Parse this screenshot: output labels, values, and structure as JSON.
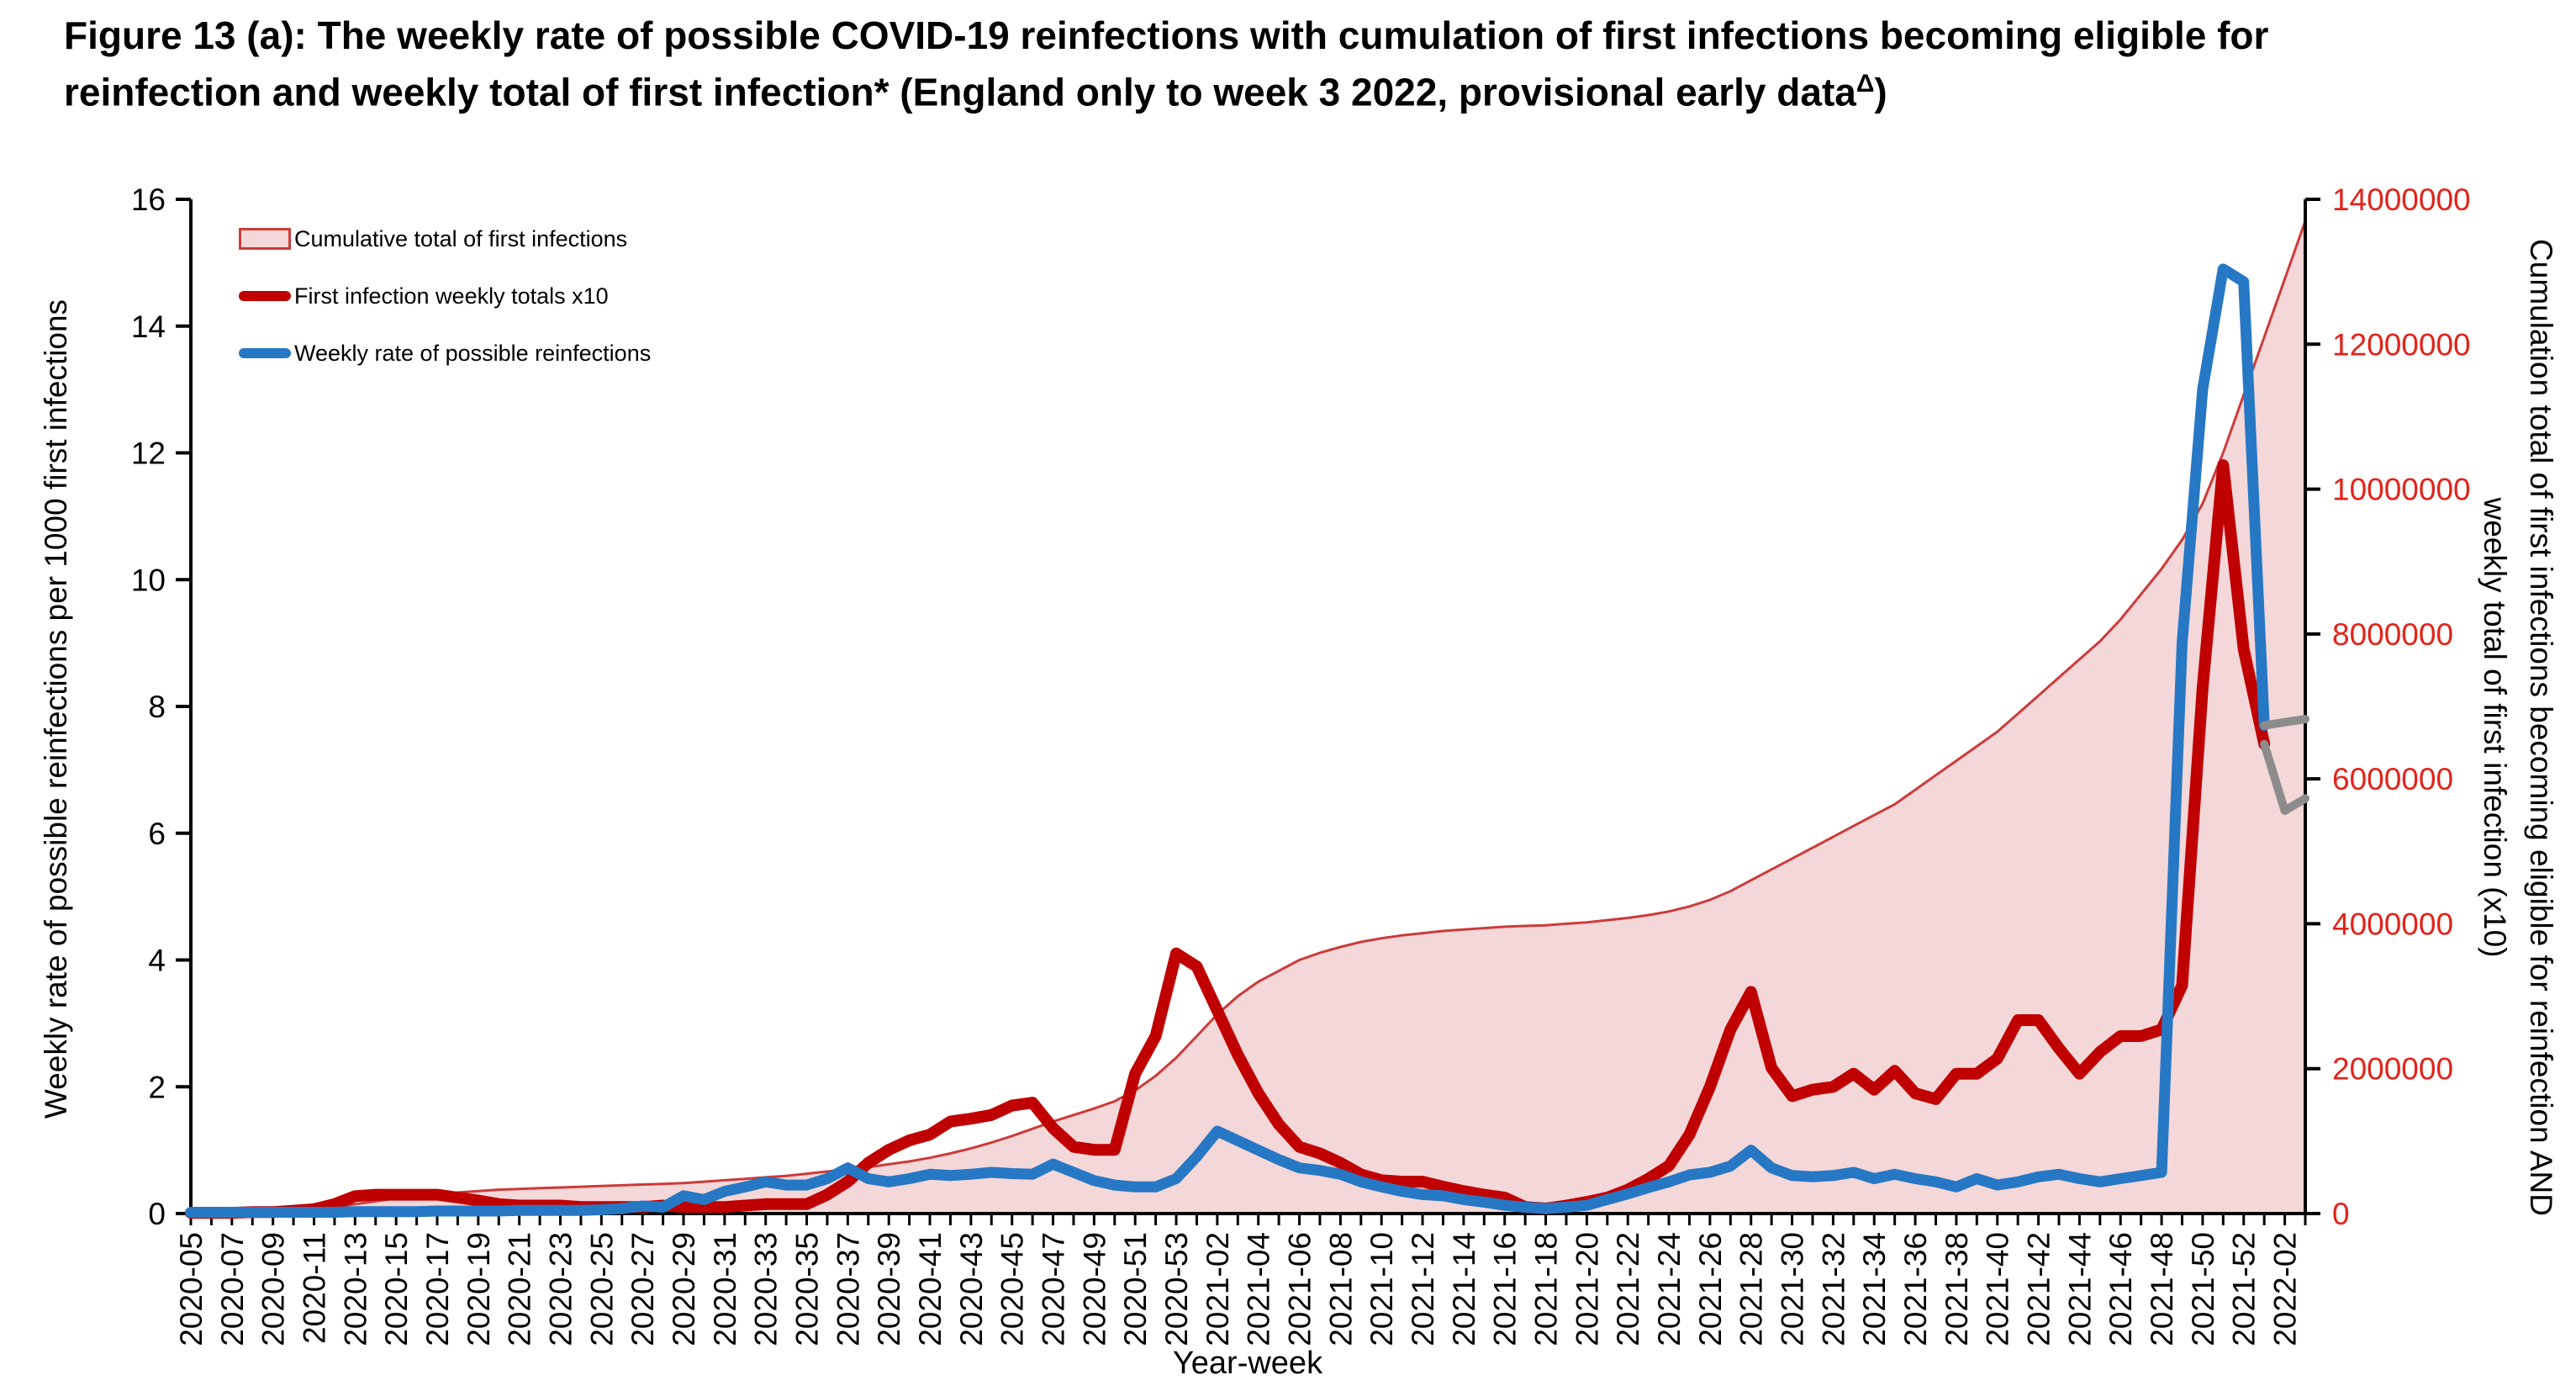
{
  "title": {
    "text_main": "Figure 13 (a): The weekly rate of possible COVID-19 reinfections with cumulation of first infections becoming eligible for reinfection and weekly total of first infection* (England only to week 3 2022, provisional early data",
    "superscript": "Δ",
    "text_close": ")"
  },
  "legend": {
    "items": [
      {
        "label": "Cumulative total of first infections",
        "type": "area",
        "fill": "#f4d7d9",
        "stroke": "#cc3b3b"
      },
      {
        "label": "First infection weekly totals x10",
        "type": "line",
        "color": "#c00000"
      },
      {
        "label": "Weekly rate of possible reinfections",
        "type": "line",
        "color": "#2778c4"
      }
    ]
  },
  "axes": {
    "left_title": "Weekly rate of possible reinfections per 1000 first infections",
    "right_title_line1": "Cumulation total of first infections becoming eligible for reinfection AND",
    "right_title_line2": "weekly total of first infection (x10)",
    "x_title": "Year-week",
    "left_ticks": [
      0,
      2,
      4,
      6,
      8,
      10,
      12,
      14,
      16
    ],
    "left_max": 16,
    "right_ticks": [
      "0",
      "2000000",
      "4000000",
      "6000000",
      "8000000",
      "10000000",
      "12000000",
      "14000000"
    ],
    "right_max_millions": 14,
    "right_label_color": "#e2231a",
    "x_label_every": 2
  },
  "chart_data": {
    "type": "line",
    "title": "The weekly rate of possible COVID-19 reinfections with cumulation of first infections becoming eligible for reinfection and weekly total of first infection",
    "xlabel": "Year-week",
    "ylabel_left": "Weekly rate of possible reinfections per 1000 first infections",
    "ylabel_right": "Cumulation total of first infections becoming eligible for reinfection AND weekly total of first infection (x10)",
    "ylim_left": [
      0,
      16
    ],
    "ylim_right": [
      0,
      14000000
    ],
    "grid": false,
    "legend_position": "top-left",
    "provisional_from_week": "2022-01",
    "provisional_color": "#8c8c8c",
    "categories": [
      "2020-05",
      "2020-06",
      "2020-07",
      "2020-08",
      "2020-09",
      "2020-10",
      "2020-11",
      "2020-12",
      "2020-13",
      "2020-14",
      "2020-15",
      "2020-16",
      "2020-17",
      "2020-18",
      "2020-19",
      "2020-20",
      "2020-21",
      "2020-22",
      "2020-23",
      "2020-24",
      "2020-25",
      "2020-26",
      "2020-27",
      "2020-28",
      "2020-29",
      "2020-30",
      "2020-31",
      "2020-32",
      "2020-33",
      "2020-34",
      "2020-35",
      "2020-36",
      "2020-37",
      "2020-38",
      "2020-39",
      "2020-40",
      "2020-41",
      "2020-42",
      "2020-43",
      "2020-44",
      "2020-45",
      "2020-46",
      "2020-47",
      "2020-48",
      "2020-49",
      "2020-50",
      "2020-51",
      "2020-52",
      "2020-53",
      "2021-01",
      "2021-02",
      "2021-03",
      "2021-04",
      "2021-05",
      "2021-06",
      "2021-07",
      "2021-08",
      "2021-09",
      "2021-10",
      "2021-11",
      "2021-12",
      "2021-13",
      "2021-14",
      "2021-15",
      "2021-16",
      "2021-17",
      "2021-18",
      "2021-19",
      "2021-20",
      "2021-21",
      "2021-22",
      "2021-23",
      "2021-24",
      "2021-25",
      "2021-26",
      "2021-27",
      "2021-28",
      "2021-29",
      "2021-30",
      "2021-31",
      "2021-32",
      "2021-33",
      "2021-34",
      "2021-35",
      "2021-36",
      "2021-37",
      "2021-38",
      "2021-39",
      "2021-40",
      "2021-41",
      "2021-42",
      "2021-43",
      "2021-44",
      "2021-45",
      "2021-46",
      "2021-47",
      "2021-48",
      "2021-49",
      "2021-50",
      "2021-51",
      "2021-52",
      "2022-01",
      "2022-02",
      "2022-03"
    ],
    "series": [
      {
        "name": "Cumulative total of first infections",
        "axis": "right",
        "units": "millions",
        "style": "area",
        "values": [
          0.01,
          0.01,
          0.02,
          0.02,
          0.03,
          0.04,
          0.06,
          0.09,
          0.13,
          0.17,
          0.21,
          0.24,
          0.27,
          0.29,
          0.31,
          0.33,
          0.34,
          0.35,
          0.36,
          0.37,
          0.38,
          0.39,
          0.4,
          0.41,
          0.42,
          0.44,
          0.46,
          0.48,
          0.5,
          0.52,
          0.55,
          0.58,
          0.61,
          0.64,
          0.68,
          0.72,
          0.77,
          0.83,
          0.9,
          0.98,
          1.07,
          1.17,
          1.27,
          1.36,
          1.45,
          1.55,
          1.7,
          1.9,
          2.15,
          2.45,
          2.75,
          3.0,
          3.2,
          3.35,
          3.5,
          3.6,
          3.68,
          3.75,
          3.8,
          3.84,
          3.87,
          3.9,
          3.92,
          3.94,
          3.96,
          3.97,
          3.98,
          4.0,
          4.02,
          4.05,
          4.08,
          4.12,
          4.17,
          4.24,
          4.33,
          4.45,
          4.6,
          4.75,
          4.9,
          5.05,
          5.2,
          5.35,
          5.5,
          5.65,
          5.85,
          6.05,
          6.25,
          6.45,
          6.65,
          6.9,
          7.15,
          7.4,
          7.65,
          7.9,
          8.2,
          8.55,
          8.9,
          9.3,
          9.8,
          10.5,
          11.3,
          12.1,
          12.9,
          13.7
        ]
      },
      {
        "name": "First infection weekly totals x10",
        "axis": "right",
        "units": "millions",
        "style": "line",
        "values": [
          0.01,
          0.01,
          0.01,
          0.02,
          0.02,
          0.04,
          0.06,
          0.13,
          0.24,
          0.26,
          0.26,
          0.26,
          0.26,
          0.22,
          0.18,
          0.13,
          0.11,
          0.11,
          0.11,
          0.09,
          0.09,
          0.09,
          0.09,
          0.11,
          0.09,
          0.09,
          0.09,
          0.11,
          0.13,
          0.13,
          0.13,
          0.26,
          0.44,
          0.7,
          0.88,
          1.01,
          1.09,
          1.27,
          1.31,
          1.36,
          1.49,
          1.53,
          1.18,
          0.92,
          0.88,
          0.88,
          1.93,
          2.45,
          3.59,
          3.41,
          2.8,
          2.19,
          1.66,
          1.23,
          0.92,
          0.83,
          0.7,
          0.54,
          0.46,
          0.44,
          0.44,
          0.37,
          0.31,
          0.26,
          0.22,
          0.09,
          0.07,
          0.11,
          0.16,
          0.22,
          0.33,
          0.48,
          0.66,
          1.09,
          1.75,
          2.54,
          3.06,
          2.01,
          1.62,
          1.71,
          1.75,
          1.93,
          1.71,
          1.97,
          1.66,
          1.58,
          1.93,
          1.93,
          2.14,
          2.67,
          2.67,
          2.28,
          1.93,
          2.23,
          2.45,
          2.45,
          2.54,
          3.15,
          7.26,
          10.33,
          7.79,
          6.48,
          5.56,
          5.73
        ]
      },
      {
        "name": "Weekly rate of possible reinfections",
        "axis": "left",
        "units": "per 1000 first infections",
        "style": "line",
        "values": [
          0.02,
          0.02,
          0.02,
          0.02,
          0.02,
          0.02,
          0.02,
          0.02,
          0.03,
          0.03,
          0.03,
          0.03,
          0.04,
          0.04,
          0.04,
          0.04,
          0.05,
          0.05,
          0.05,
          0.05,
          0.06,
          0.08,
          0.12,
          0.1,
          0.28,
          0.22,
          0.35,
          0.42,
          0.5,
          0.45,
          0.45,
          0.55,
          0.72,
          0.55,
          0.5,
          0.55,
          0.62,
          0.6,
          0.62,
          0.65,
          0.63,
          0.62,
          0.78,
          0.65,
          0.52,
          0.45,
          0.42,
          0.42,
          0.55,
          0.9,
          1.3,
          1.15,
          1.0,
          0.85,
          0.72,
          0.68,
          0.62,
          0.5,
          0.42,
          0.35,
          0.3,
          0.28,
          0.22,
          0.18,
          0.13,
          0.1,
          0.08,
          0.1,
          0.13,
          0.22,
          0.31,
          0.41,
          0.5,
          0.61,
          0.65,
          0.75,
          1.0,
          0.72,
          0.6,
          0.58,
          0.6,
          0.65,
          0.55,
          0.62,
          0.55,
          0.5,
          0.42,
          0.55,
          0.45,
          0.5,
          0.58,
          0.62,
          0.55,
          0.5,
          0.55,
          0.6,
          0.65,
          9.0,
          13.0,
          14.9,
          14.7,
          7.7,
          7.75,
          7.8
        ]
      }
    ]
  }
}
